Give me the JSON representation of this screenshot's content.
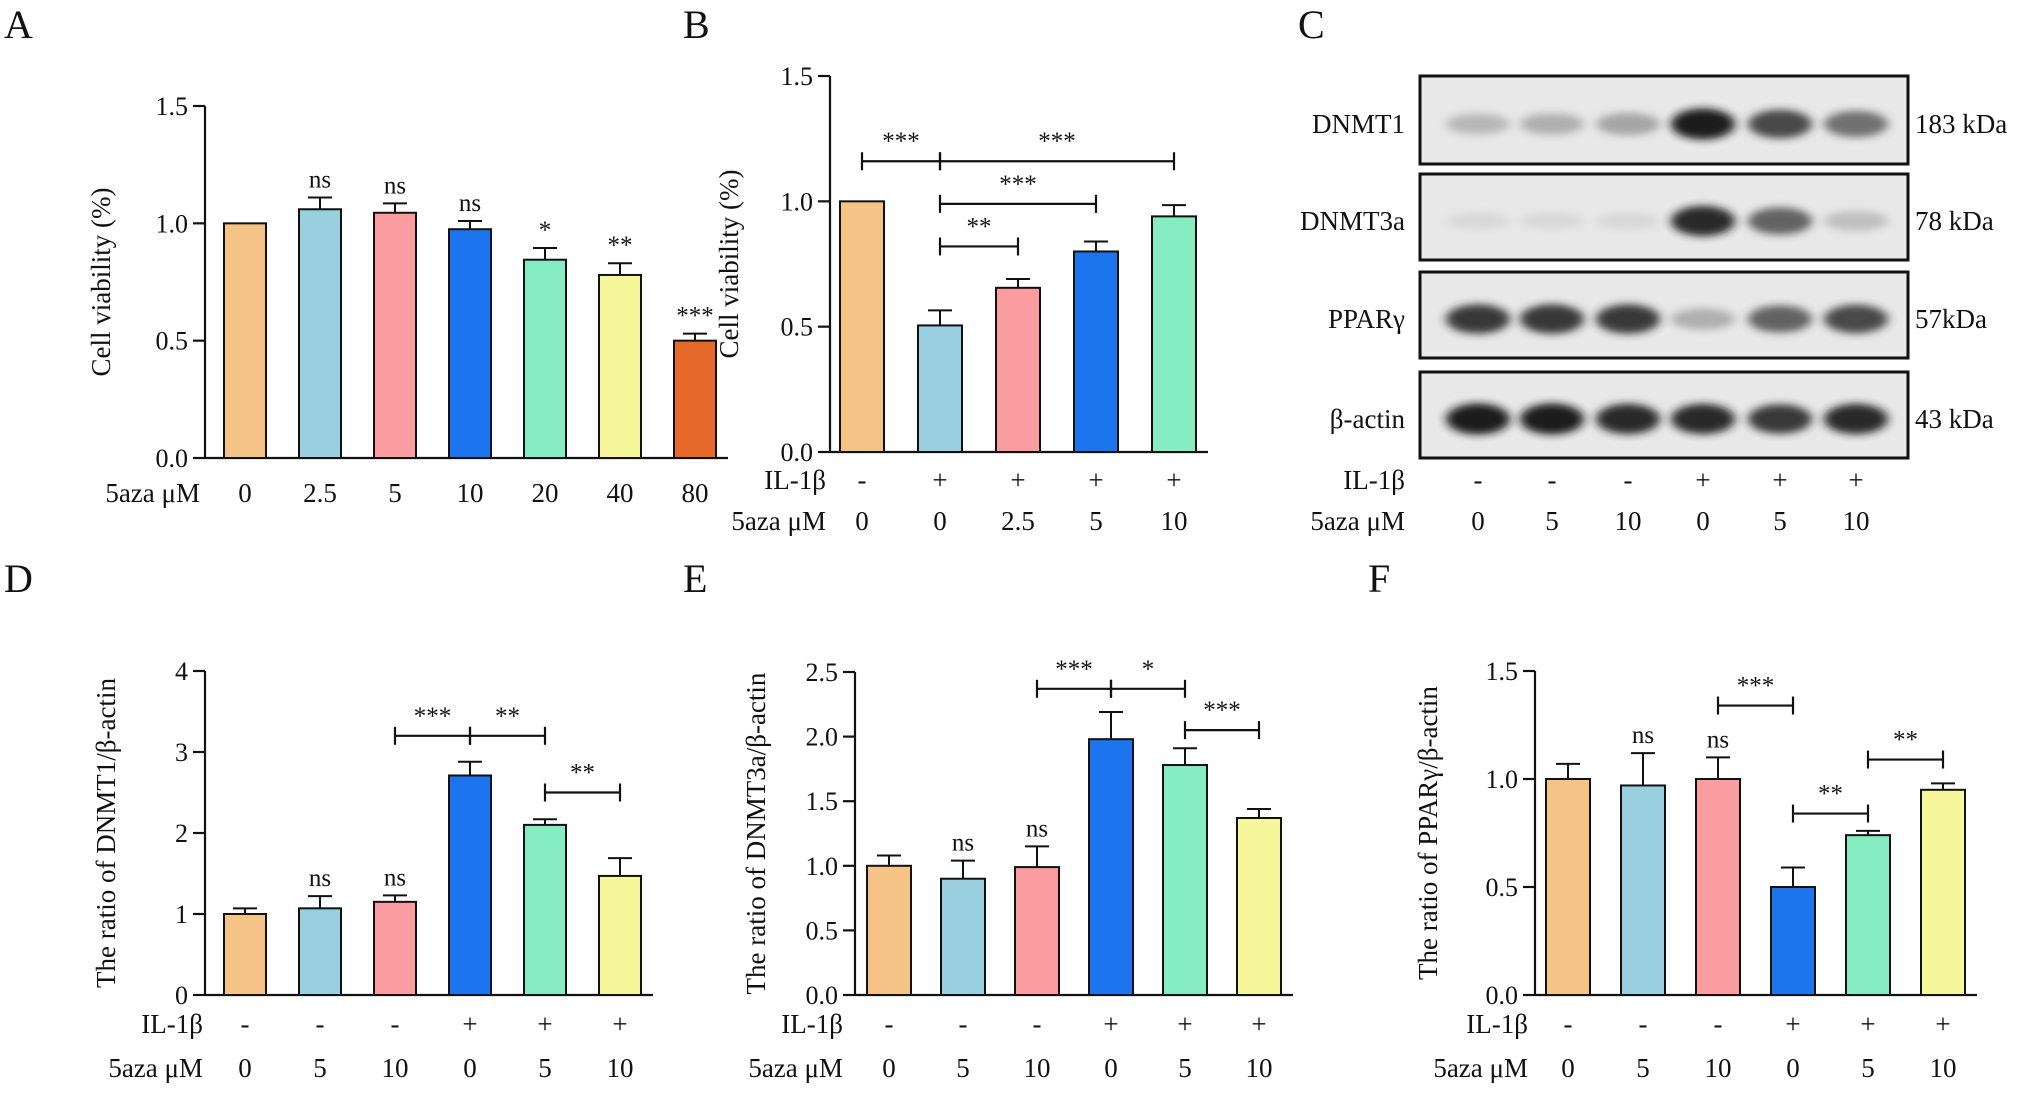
{
  "colors": {
    "orange": "#F6C386",
    "lightblue": "#9ACFE0",
    "pink": "#FA9CA0",
    "blue": "#1C75EE",
    "green": "#86EDC3",
    "yellow": "#F6F79B",
    "darkorange": "#E56A2A"
  },
  "chart_data": [
    {
      "id": "A",
      "letter": "A",
      "type": "bar",
      "ylabel": "Cell viability (%)",
      "ylim": [
        0,
        1.5
      ],
      "yticks": [
        "0.0",
        "0.5",
        "1.0",
        "1.5"
      ],
      "ytick_values": [
        0,
        0.5,
        1.0,
        1.5
      ],
      "row_labels": [
        "5aza μM"
      ],
      "categories": [
        [
          "0"
        ],
        [
          "2.5"
        ],
        [
          "5"
        ],
        [
          "10"
        ],
        [
          "20"
        ],
        [
          "40"
        ],
        [
          "80"
        ]
      ],
      "values": [
        1.0,
        1.06,
        1.045,
        0.975,
        0.845,
        0.78,
        0.5
      ],
      "errors": [
        0,
        0.05,
        0.04,
        0.035,
        0.05,
        0.05,
        0.03
      ],
      "colors": [
        "orange",
        "lightblue",
        "pink",
        "blue",
        "green",
        "yellow",
        "darkorange"
      ],
      "annotations": [
        "",
        "ns",
        "ns",
        "ns",
        "*",
        "**",
        "***"
      ],
      "brackets": []
    },
    {
      "id": "B",
      "letter": "B",
      "type": "bar",
      "ylabel": "Cell viability (%)",
      "ylim": [
        0,
        1.5
      ],
      "yticks": [
        "0.0",
        "0.5",
        "1.0",
        "1.5"
      ],
      "ytick_values": [
        0,
        0.5,
        1.0,
        1.5
      ],
      "row_labels": [
        "IL-1β",
        "5aza μM"
      ],
      "categories": [
        [
          "-",
          "0"
        ],
        [
          "+",
          "0"
        ],
        [
          "+",
          "2.5"
        ],
        [
          "+",
          "5"
        ],
        [
          "+",
          "10"
        ]
      ],
      "values": [
        1.0,
        0.505,
        0.655,
        0.8,
        0.94
      ],
      "errors": [
        0,
        0.06,
        0.035,
        0.04,
        0.045
      ],
      "colors": [
        "orange",
        "lightblue",
        "pink",
        "blue",
        "green"
      ],
      "annotations": [
        "",
        "",
        "",
        "",
        ""
      ],
      "brackets": [
        {
          "from": 0,
          "to": 1,
          "y": 1.16,
          "label": "***"
        },
        {
          "from": 1,
          "to": 4,
          "y": 1.16,
          "label": "***"
        },
        {
          "from": 1,
          "to": 3,
          "y": 0.99,
          "label": "***"
        },
        {
          "from": 1,
          "to": 2,
          "y": 0.82,
          "label": "**"
        }
      ]
    },
    {
      "id": "D",
      "letter": "D",
      "type": "bar",
      "ylabel": "The ratio of DNMT1/β-actin",
      "ylim": [
        0,
        4
      ],
      "yticks": [
        "0",
        "1",
        "2",
        "3",
        "4"
      ],
      "ytick_values": [
        0,
        1,
        2,
        3,
        4
      ],
      "row_labels": [
        "IL-1β",
        "5aza μM"
      ],
      "categories": [
        [
          "-",
          "0"
        ],
        [
          "-",
          "5"
        ],
        [
          "-",
          "10"
        ],
        [
          "+",
          "0"
        ],
        [
          "+",
          "5"
        ],
        [
          "+",
          "10"
        ]
      ],
      "values": [
        1.0,
        1.07,
        1.15,
        2.71,
        2.1,
        1.47
      ],
      "errors": [
        0.07,
        0.15,
        0.08,
        0.17,
        0.07,
        0.22
      ],
      "colors": [
        "orange",
        "lightblue",
        "pink",
        "blue",
        "green",
        "yellow"
      ],
      "annotations": [
        "",
        "ns",
        "ns",
        "",
        "",
        ""
      ],
      "brackets": [
        {
          "from": 2,
          "to": 3,
          "y": 3.2,
          "label": "***"
        },
        {
          "from": 3,
          "to": 4,
          "y": 3.2,
          "label": "**"
        },
        {
          "from": 4,
          "to": 5,
          "y": 2.5,
          "label": "**"
        }
      ]
    },
    {
      "id": "E",
      "letter": "E",
      "type": "bar",
      "ylabel": "The ratio of DNMT3a/β-actin",
      "ylim": [
        0,
        2.5
      ],
      "yticks": [
        "0.0",
        "0.5",
        "1.0",
        "1.5",
        "2.0",
        "2.5"
      ],
      "ytick_values": [
        0,
        0.5,
        1.0,
        1.5,
        2.0,
        2.5
      ],
      "row_labels": [
        "IL-1β",
        "5aza μM"
      ],
      "categories": [
        [
          "-",
          "0"
        ],
        [
          "-",
          "5"
        ],
        [
          "-",
          "10"
        ],
        [
          "+",
          "0"
        ],
        [
          "+",
          "5"
        ],
        [
          "+",
          "10"
        ]
      ],
      "values": [
        1.0,
        0.9,
        0.99,
        1.98,
        1.78,
        1.37
      ],
      "errors": [
        0.08,
        0.14,
        0.16,
        0.21,
        0.13,
        0.07
      ],
      "colors": [
        "orange",
        "lightblue",
        "pink",
        "blue",
        "green",
        "yellow"
      ],
      "annotations": [
        "",
        "ns",
        "ns",
        "",
        "",
        ""
      ],
      "brackets": [
        {
          "from": 2,
          "to": 3,
          "y": 2.37,
          "label": "***"
        },
        {
          "from": 3,
          "to": 4,
          "y": 2.37,
          "label": "*"
        },
        {
          "from": 4,
          "to": 5,
          "y": 2.05,
          "label": "***"
        }
      ]
    },
    {
      "id": "F",
      "letter": "F",
      "type": "bar",
      "ylabel": "The ratio of PPARγ/β-actin",
      "ylim": [
        0,
        1.5
      ],
      "yticks": [
        "0.0",
        "0.5",
        "1.0",
        "1.5"
      ],
      "ytick_values": [
        0,
        0.5,
        1.0,
        1.5
      ],
      "row_labels": [
        "IL-1β",
        "5aza μM"
      ],
      "categories": [
        [
          "-",
          "0"
        ],
        [
          "-",
          "5"
        ],
        [
          "-",
          "10"
        ],
        [
          "+",
          "0"
        ],
        [
          "+",
          "5"
        ],
        [
          "+",
          "10"
        ]
      ],
      "values": [
        1.0,
        0.97,
        1.0,
        0.5,
        0.74,
        0.95
      ],
      "errors": [
        0.07,
        0.15,
        0.1,
        0.09,
        0.02,
        0.03
      ],
      "colors": [
        "orange",
        "lightblue",
        "pink",
        "blue",
        "green",
        "yellow"
      ],
      "annotations": [
        "",
        "ns",
        "ns",
        "",
        "",
        ""
      ],
      "brackets": [
        {
          "from": 2,
          "to": 3,
          "y": 1.34,
          "label": "***"
        },
        {
          "from": 3,
          "to": 4,
          "y": 0.84,
          "label": "**"
        },
        {
          "from": 4,
          "to": 5,
          "y": 1.09,
          "label": "**"
        }
      ]
    }
  ],
  "blot": {
    "letter": "C",
    "rows": [
      {
        "protein": "DNMT1",
        "size": "183 kDa",
        "intensities": [
          0.3,
          0.35,
          0.4,
          0.95,
          0.8,
          0.65
        ]
      },
      {
        "protein": "DNMT3a",
        "size": "78 kDa",
        "intensities": [
          0.05,
          0.05,
          0.05,
          0.9,
          0.7,
          0.25
        ]
      },
      {
        "protein": "PPARγ",
        "size": "57kDa",
        "intensities": [
          0.85,
          0.85,
          0.85,
          0.35,
          0.7,
          0.8
        ]
      },
      {
        "protein": "β-actin",
        "size": "43 kDa",
        "intensities": [
          0.95,
          0.95,
          0.9,
          0.9,
          0.85,
          0.9
        ]
      }
    ],
    "row_labels": [
      "IL-1β",
      "5aza μM"
    ],
    "lanes": [
      [
        "-",
        "0"
      ],
      [
        "-",
        "5"
      ],
      [
        "-",
        "10"
      ],
      [
        "+",
        "0"
      ],
      [
        "+",
        "5"
      ],
      [
        "+",
        "10"
      ]
    ]
  }
}
